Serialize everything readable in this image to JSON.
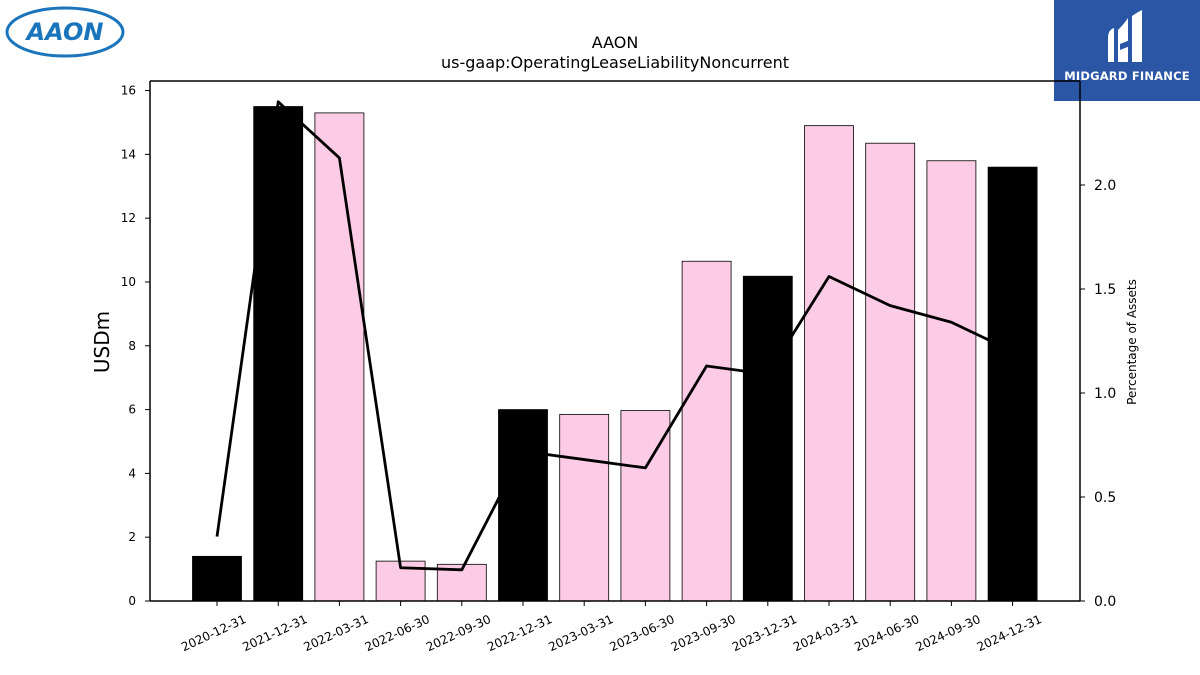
{
  "logos": {
    "left_text": "AAON",
    "right_text": "MIDGARD FINANCE"
  },
  "chart_data": {
    "type": "bar",
    "title": "AAON",
    "subtitle": "us-gaap:OperatingLeaseLiabilityNoncurrent",
    "ylabel": "USDm",
    "y2label": "Percentage of Assets",
    "ylim": [
      0,
      16.3
    ],
    "y2lim": [
      0,
      2.5
    ],
    "yticks": [
      0,
      2,
      4,
      6,
      8,
      10,
      12,
      14,
      16
    ],
    "y2ticks": [
      0.0,
      0.5,
      1.0,
      1.5,
      2.0
    ],
    "categories": [
      "2020-12-31",
      "2021-12-31",
      "2022-03-31",
      "2022-06-30",
      "2022-09-30",
      "2022-12-31",
      "2023-03-31",
      "2023-06-30",
      "2023-09-30",
      "2023-12-31",
      "2024-03-31",
      "2024-06-30",
      "2024-09-30",
      "2024-12-31"
    ],
    "series": [
      {
        "kind": "bar",
        "values": [
          1.4,
          15.5,
          15.3,
          1.25,
          1.15,
          6.0,
          5.85,
          5.97,
          10.65,
          10.18,
          14.9,
          14.35,
          13.8,
          13.6
        ],
        "colors": [
          "#000000",
          "#000000",
          "#fccbe6",
          "#fccbe6",
          "#fccbe6",
          "#000000",
          "#fccbe6",
          "#fccbe6",
          "#fccbe6",
          "#000000",
          "#fccbe6",
          "#fccbe6",
          "#fccbe6",
          "#000000"
        ]
      },
      {
        "kind": "line",
        "axis": "right",
        "color": "#000000",
        "values": [
          0.31,
          2.4,
          2.13,
          0.16,
          0.15,
          0.72,
          0.68,
          0.64,
          1.13,
          1.09,
          1.56,
          1.42,
          1.34,
          1.2
        ]
      }
    ]
  }
}
